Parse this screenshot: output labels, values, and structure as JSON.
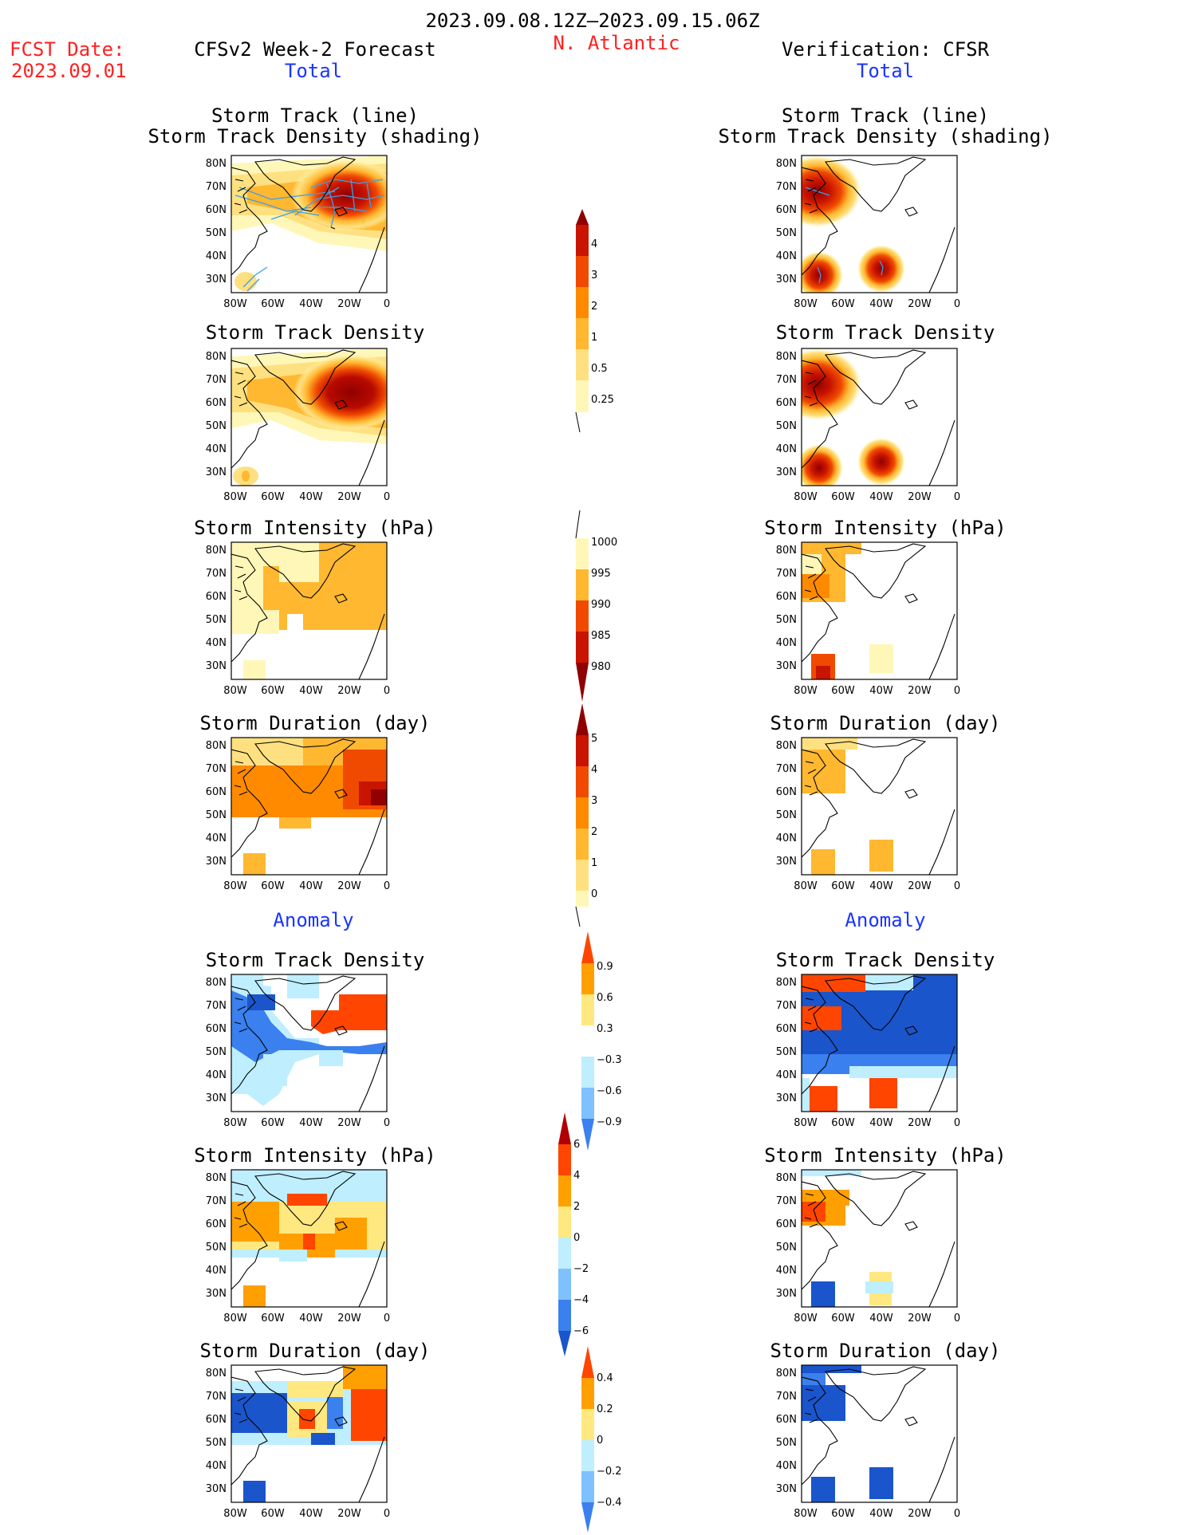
{
  "header": {
    "period": "2023.09.08.12Z–2023.09.15.06Z",
    "region": "N. Atlantic",
    "fcst_label": "FCST Date:",
    "fcst_date": "2023.09.01",
    "left_title": "CFSv2 Week-2 Forecast",
    "right_title": "Verification: CFSR",
    "left_total": "Total",
    "right_total": "Total",
    "left_anomaly": "Anomaly",
    "right_anomaly": "Anomaly"
  },
  "panel_titles": {
    "track_line": "Storm Track (line)",
    "track_shading": "Storm Track Density (shading)",
    "density": "Storm Track Density",
    "intensity": "Storm Intensity (hPa)",
    "duration": "Storm Duration (day)"
  },
  "axes": {
    "lat_labels": [
      "80N",
      "70N",
      "60N",
      "50N",
      "40N",
      "30N"
    ],
    "lon_labels": [
      "80W",
      "60W",
      "40W",
      "20W",
      "0"
    ]
  },
  "colorbars": {
    "density_total": [
      "4",
      "3",
      "2",
      "1",
      "0.5",
      "0.25"
    ],
    "intensity_total": [
      "1000",
      "995",
      "990",
      "985",
      "980"
    ],
    "duration_total": [
      "5",
      "4",
      "3",
      "2",
      "1",
      "0"
    ],
    "density_anom": [
      "0.9",
      "0.6",
      "0.3",
      "−0.3",
      "−0.6",
      "−0.9"
    ],
    "intensity_anom": [
      "6",
      "4",
      "2",
      "0",
      "−2",
      "−4",
      "−6"
    ],
    "duration_anom": [
      "0.4",
      "0.2",
      "0",
      "−0.2",
      "−0.4"
    ]
  },
  "colors": {
    "header_red": "#ff2020",
    "header_blue": "#1a35ff",
    "total_scale": [
      "#fff7b8",
      "#ffe080",
      "#ffb830",
      "#ff8a00",
      "#f04a00",
      "#c81400",
      "#900000"
    ],
    "anom_warm": [
      "#ffe880",
      "#ffa000",
      "#ff4500",
      "#b00000"
    ],
    "anom_cold": [
      "#bfeeff",
      "#7fc0ff",
      "#3a80ee",
      "#1a55cc"
    ],
    "track_line": "#3aa0e8"
  }
}
